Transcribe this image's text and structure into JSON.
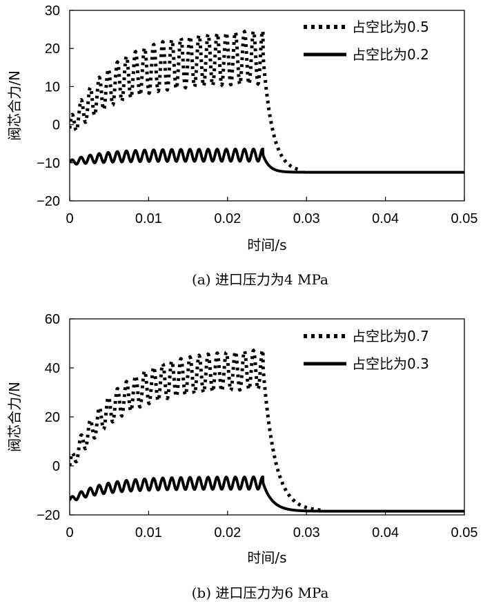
{
  "chart_data": [
    {
      "type": "line",
      "caption": "(a) 进口压力为4 MPa",
      "xlabel": "时间/s",
      "ylabel": "阀芯合力/N",
      "xlim": [
        0,
        0.05
      ],
      "ylim": [
        -20,
        30
      ],
      "xticks": [
        "0",
        "0.01",
        "0.02",
        "0.03",
        "0.04",
        "0.05"
      ],
      "yticks": [
        "30",
        "20",
        "10",
        "0",
        "−10",
        "−20"
      ],
      "legend_position": "top-right",
      "series": [
        {
          "name": "占空比为0.5",
          "style": "dotted",
          "base": -12.5,
          "pulse_end": 0.0245,
          "osc_center_start": -1,
          "osc_center_end": 18,
          "amplitude": 7,
          "ramp_time": 0.006,
          "decay_tau": 0.0012,
          "tail_end": 0.029
        },
        {
          "name": "占空比为0.2",
          "style": "solid",
          "base": -12.5,
          "pulse_end": 0.0245,
          "osc_center_start": -10,
          "osc_center_end": -8,
          "amplitude": 1.6,
          "ramp_time": 0.004,
          "decay_tau": 0.0008,
          "tail_end": 0.05
        }
      ]
    },
    {
      "type": "line",
      "caption": "(b) 进口压力为6 MPa",
      "xlabel": "时间/s",
      "ylabel": "阀芯合力/N",
      "xlim": [
        0,
        0.05
      ],
      "ylim": [
        -20,
        60
      ],
      "xticks": [
        "0",
        "0.01",
        "0.02",
        "0.03",
        "0.04",
        "0.05"
      ],
      "yticks": [
        "60",
        "40",
        "20",
        "0",
        "−20"
      ],
      "legend_position": "top-right",
      "series": [
        {
          "name": "占空比为0.7",
          "style": "dotted",
          "base": -18.5,
          "pulse_end": 0.0245,
          "osc_center_start": 0,
          "osc_center_end": 40,
          "amplitude": 8,
          "ramp_time": 0.006,
          "decay_tau": 0.0015,
          "tail_end": 0.032
        },
        {
          "name": "占空比为0.3",
          "style": "solid",
          "base": -18.5,
          "pulse_end": 0.0245,
          "osc_center_start": -14,
          "osc_center_end": -7,
          "amplitude": 2.5,
          "ramp_time": 0.004,
          "decay_tau": 0.0012,
          "tail_end": 0.05
        }
      ]
    }
  ]
}
